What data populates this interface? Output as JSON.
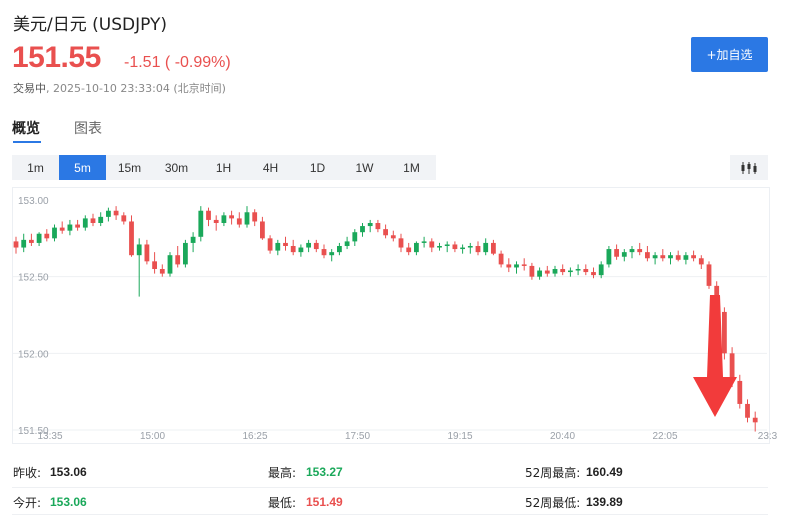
{
  "header": {
    "title": "美元/日元 (USDJPY)",
    "price": "151.55",
    "change": "-1.51 ( -0.99%)",
    "status": "交易中",
    "timestamp": "2025-10-10 23:33:04 (北京时间)",
    "watch_button": "+加自选"
  },
  "tabs": [
    {
      "label": "概览",
      "active": true
    },
    {
      "label": "图表",
      "active": false
    }
  ],
  "periods": [
    "1m",
    "5m",
    "15m",
    "30m",
    "1H",
    "4H",
    "1D",
    "1W",
    "1M"
  ],
  "active_period": "5m",
  "chart_type_icon": "candlestick-icon",
  "colors": {
    "up": "#1aa85a",
    "down": "#e9504f",
    "accent": "#2b78e4",
    "arrow": "#f23b3b"
  },
  "stats": {
    "prev_close": {
      "label": "昨收:",
      "value": "153.06"
    },
    "open": {
      "label": "今开:",
      "value": "153.06"
    },
    "high": {
      "label": "最高:",
      "value": "153.27"
    },
    "low": {
      "label": "最低:",
      "value": "151.49"
    },
    "high52": {
      "label": "52周最高:",
      "value": "160.49"
    },
    "low52": {
      "label": "52周最低:",
      "value": "139.89"
    }
  },
  "chart_data": {
    "type": "candlestick",
    "y_ticks": [
      "153.00",
      "152.50",
      "152.00",
      "151.50"
    ],
    "ylim": [
      151.5,
      153.0
    ],
    "x_ticks": [
      "13:35",
      "15:00",
      "16:25",
      "17:50",
      "19:15",
      "20:40",
      "22:05",
      "23:3"
    ],
    "candles": [
      [
        152.73,
        152.76,
        152.65,
        152.69
      ],
      [
        152.69,
        152.78,
        152.66,
        152.74
      ],
      [
        152.74,
        152.78,
        152.7,
        152.72
      ],
      [
        152.72,
        152.79,
        152.7,
        152.78
      ],
      [
        152.78,
        152.81,
        152.73,
        152.75
      ],
      [
        152.75,
        152.84,
        152.73,
        152.82
      ],
      [
        152.82,
        152.86,
        152.78,
        152.8
      ],
      [
        152.8,
        152.87,
        152.77,
        152.84
      ],
      [
        152.84,
        152.87,
        152.8,
        152.82
      ],
      [
        152.82,
        152.9,
        152.8,
        152.88
      ],
      [
        152.88,
        152.91,
        152.83,
        152.85
      ],
      [
        152.85,
        152.92,
        152.83,
        152.89
      ],
      [
        152.89,
        152.95,
        152.86,
        152.93
      ],
      [
        152.93,
        152.96,
        152.87,
        152.9
      ],
      [
        152.9,
        152.92,
        152.84,
        152.86
      ],
      [
        152.86,
        152.9,
        152.63,
        152.64
      ],
      [
        152.64,
        152.75,
        152.37,
        152.71
      ],
      [
        152.71,
        152.74,
        152.58,
        152.6
      ],
      [
        152.6,
        152.66,
        152.52,
        152.55
      ],
      [
        152.55,
        152.58,
        152.5,
        152.52
      ],
      [
        152.52,
        152.66,
        152.5,
        152.64
      ],
      [
        152.64,
        152.7,
        152.56,
        152.58
      ],
      [
        152.58,
        152.74,
        152.56,
        152.72
      ],
      [
        152.72,
        152.79,
        152.66,
        152.76
      ],
      [
        152.76,
        152.96,
        152.73,
        152.93
      ],
      [
        152.93,
        152.95,
        152.83,
        152.87
      ],
      [
        152.87,
        152.9,
        152.8,
        152.85
      ],
      [
        152.85,
        152.92,
        152.83,
        152.9
      ],
      [
        152.9,
        152.93,
        152.84,
        152.88
      ],
      [
        152.88,
        152.92,
        152.82,
        152.84
      ],
      [
        152.84,
        152.96,
        152.82,
        152.92
      ],
      [
        152.92,
        152.94,
        152.83,
        152.86
      ],
      [
        152.86,
        152.89,
        152.74,
        152.75
      ],
      [
        152.75,
        152.77,
        152.65,
        152.67
      ],
      [
        152.67,
        152.74,
        152.64,
        152.72
      ],
      [
        152.72,
        152.76,
        152.67,
        152.7
      ],
      [
        152.7,
        152.74,
        152.64,
        152.66
      ],
      [
        152.66,
        152.71,
        152.63,
        152.69
      ],
      [
        152.69,
        152.74,
        152.66,
        152.72
      ],
      [
        152.72,
        152.74,
        152.66,
        152.68
      ],
      [
        152.68,
        152.71,
        152.62,
        152.64
      ],
      [
        152.64,
        152.68,
        152.6,
        152.66
      ],
      [
        152.66,
        152.72,
        152.64,
        152.7
      ],
      [
        152.7,
        152.76,
        152.68,
        152.73
      ],
      [
        152.73,
        152.81,
        152.7,
        152.79
      ],
      [
        152.79,
        152.85,
        152.76,
        152.83
      ],
      [
        152.83,
        152.87,
        152.79,
        152.85
      ],
      [
        152.85,
        152.87,
        152.79,
        152.81
      ],
      [
        152.81,
        152.84,
        152.75,
        152.77
      ],
      [
        152.77,
        152.8,
        152.73,
        152.75
      ],
      [
        152.75,
        152.78,
        152.66,
        152.69
      ],
      [
        152.69,
        152.72,
        152.64,
        152.66
      ],
      [
        152.66,
        152.73,
        152.64,
        152.72
      ],
      [
        152.72,
        152.76,
        152.69,
        152.73
      ],
      [
        152.73,
        152.75,
        152.66,
        152.69
      ],
      [
        152.69,
        152.72,
        152.67,
        152.7
      ],
      [
        152.7,
        152.73,
        152.66,
        152.71
      ],
      [
        152.71,
        152.73,
        152.66,
        152.68
      ],
      [
        152.68,
        152.71,
        152.65,
        152.69
      ],
      [
        152.69,
        152.72,
        152.65,
        152.7
      ],
      [
        152.7,
        152.73,
        152.64,
        152.66
      ],
      [
        152.66,
        152.75,
        152.64,
        152.72
      ],
      [
        152.72,
        152.74,
        152.64,
        152.65
      ],
      [
        152.65,
        152.67,
        152.56,
        152.58
      ],
      [
        152.58,
        152.62,
        152.53,
        152.56
      ],
      [
        152.56,
        152.6,
        152.52,
        152.58
      ],
      [
        152.58,
        152.62,
        152.54,
        152.57
      ],
      [
        152.57,
        152.59,
        152.48,
        152.5
      ],
      [
        152.5,
        152.56,
        152.48,
        152.54
      ],
      [
        152.54,
        152.57,
        152.5,
        152.52
      ],
      [
        152.52,
        152.57,
        152.5,
        152.55
      ],
      [
        152.55,
        152.58,
        152.51,
        152.53
      ],
      [
        152.53,
        152.56,
        152.5,
        152.54
      ],
      [
        152.54,
        152.58,
        152.51,
        152.55
      ],
      [
        152.55,
        152.58,
        152.51,
        152.53
      ],
      [
        152.53,
        152.56,
        152.49,
        152.51
      ],
      [
        152.51,
        152.6,
        152.49,
        152.58
      ],
      [
        152.58,
        152.7,
        152.56,
        152.68
      ],
      [
        152.68,
        152.71,
        152.61,
        152.63
      ],
      [
        152.63,
        152.68,
        152.6,
        152.66
      ],
      [
        152.66,
        152.7,
        152.62,
        152.68
      ],
      [
        152.68,
        152.72,
        152.64,
        152.66
      ],
      [
        152.66,
        152.7,
        152.6,
        152.62
      ],
      [
        152.62,
        152.66,
        152.58,
        152.64
      ],
      [
        152.64,
        152.68,
        152.6,
        152.62
      ],
      [
        152.62,
        152.66,
        152.58,
        152.64
      ],
      [
        152.64,
        152.67,
        152.6,
        152.61
      ],
      [
        152.61,
        152.66,
        152.58,
        152.64
      ],
      [
        152.64,
        152.67,
        152.6,
        152.62
      ],
      [
        152.62,
        152.64,
        152.55,
        152.58
      ],
      [
        152.58,
        152.6,
        152.42,
        152.44
      ],
      [
        152.44,
        152.47,
        152.24,
        152.27
      ],
      [
        152.27,
        152.3,
        151.96,
        152.0
      ],
      [
        152.0,
        152.04,
        151.78,
        151.82
      ],
      [
        151.82,
        151.86,
        151.64,
        151.67
      ],
      [
        151.67,
        151.7,
        151.55,
        151.58
      ],
      [
        151.58,
        151.62,
        151.49,
        151.55
      ]
    ]
  }
}
